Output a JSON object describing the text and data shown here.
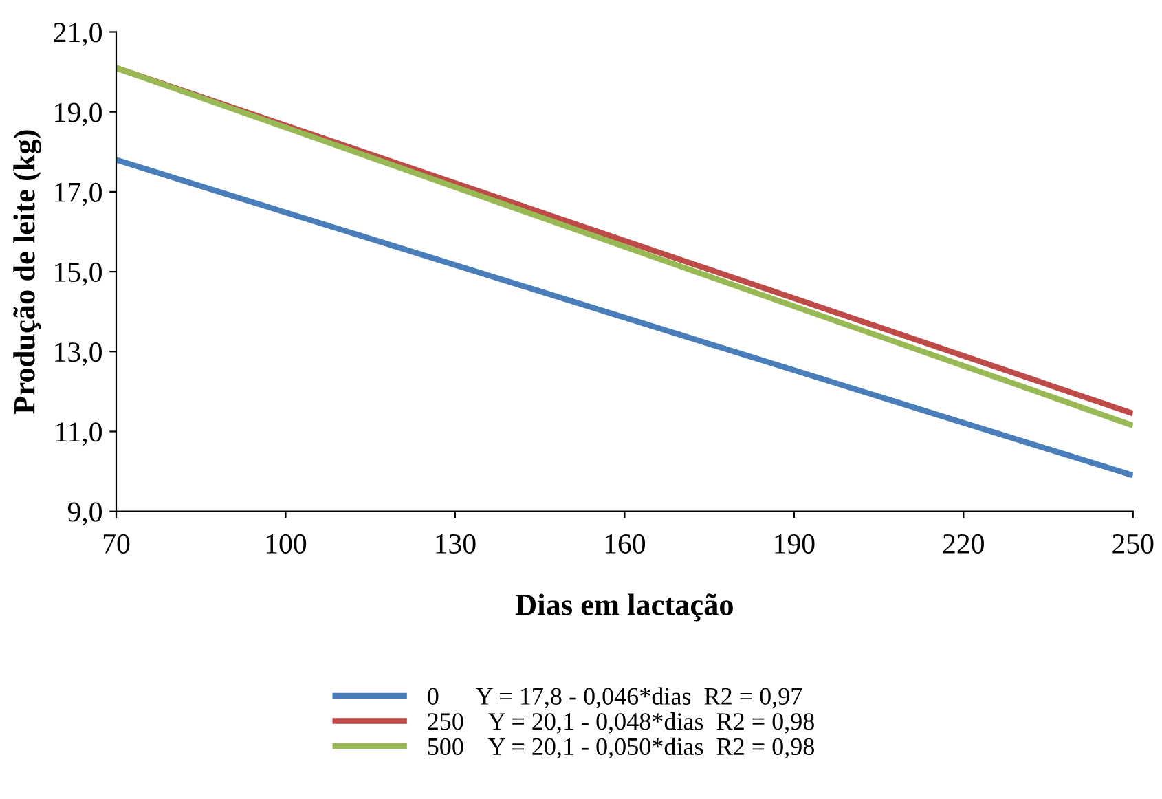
{
  "chart_data": {
    "type": "line",
    "xlabel": "Dias em lactação",
    "ylabel": "Produção de leite (kg)",
    "x": [
      70,
      250
    ],
    "series": [
      {
        "name": "0      Y = 17,8 - 0,046*dias  R2 = 0,97",
        "color": "#4a7ebb",
        "values": [
          17.8,
          9.9
        ]
      },
      {
        "name": "250    Y = 20,1 - 0,048*dias  R2 = 0,98",
        "color": "#be4b48",
        "values": [
          20.1,
          11.45
        ]
      },
      {
        "name": "500    Y = 20,1 - 0,050*dias  R2 = 0,98",
        "color": "#98b954",
        "values": [
          20.1,
          11.15
        ]
      }
    ],
    "xlim": [
      70,
      250
    ],
    "xticks": [
      70,
      100,
      130,
      160,
      190,
      220,
      250
    ],
    "ylim": [
      9,
      21
    ],
    "yticks": [
      {
        "value": 9,
        "label": "9,0"
      },
      {
        "value": 11,
        "label": "11,0"
      },
      {
        "value": 13,
        "label": "13,0"
      },
      {
        "value": 15,
        "label": "15,0"
      },
      {
        "value": 17,
        "label": "17,0"
      },
      {
        "value": 19,
        "label": "19,0"
      },
      {
        "value": 21,
        "label": "21,0"
      }
    ],
    "grid": false,
    "legend": "bottom",
    "marker": "none",
    "line_style": "solid"
  }
}
